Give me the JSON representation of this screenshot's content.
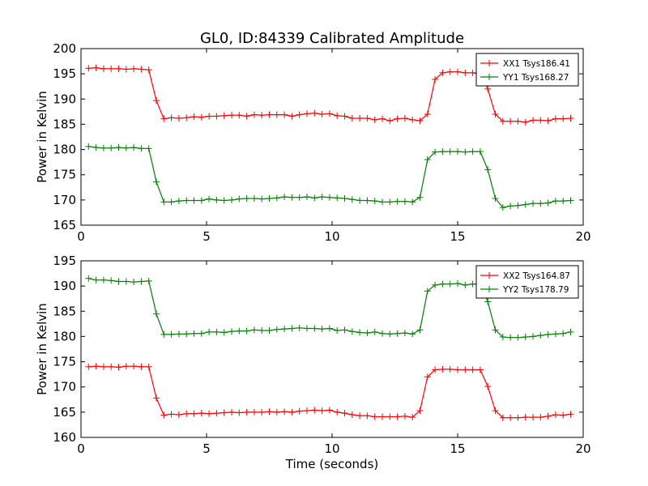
{
  "title": "GL0, ID:84339 Calibrated Amplitude",
  "chart_data": [
    {
      "type": "line",
      "xlabel": "",
      "ylabel": "Power in Kelvin",
      "xlim": [
        0,
        20
      ],
      "ylim": [
        165,
        200
      ],
      "x_ticks": [
        "0",
        "5",
        "10",
        "15",
        "20"
      ],
      "y_ticks": [
        "165",
        "170",
        "175",
        "180",
        "185",
        "190",
        "195",
        "200"
      ],
      "legend_position": "top-right",
      "series": [
        {
          "name": "XX1 Tsys186.41",
          "color": "#ff0000",
          "x": [
            0.3,
            0.6,
            0.9,
            1.2,
            1.5,
            1.8,
            2.1,
            2.4,
            2.7,
            3.0,
            3.3,
            3.6,
            3.9,
            4.2,
            4.5,
            4.8,
            5.1,
            5.4,
            5.7,
            6.0,
            6.3,
            6.6,
            6.9,
            7.2,
            7.5,
            7.8,
            8.1,
            8.4,
            8.7,
            9.0,
            9.3,
            9.6,
            9.9,
            10.2,
            10.5,
            10.8,
            11.1,
            11.4,
            11.7,
            12.0,
            12.3,
            12.6,
            12.9,
            13.2,
            13.5,
            13.8,
            14.1,
            14.4,
            14.7,
            15.0,
            15.3,
            15.6,
            15.9,
            16.2,
            16.5,
            16.8,
            17.1,
            17.4,
            17.7,
            18.0,
            18.3,
            18.6,
            18.9,
            19.2,
            19.5
          ],
          "y": [
            196.1,
            196.2,
            196.0,
            196.0,
            196.0,
            195.9,
            196.0,
            195.9,
            195.8,
            189.7,
            186.1,
            186.3,
            186.2,
            186.3,
            186.5,
            186.4,
            186.6,
            186.6,
            186.7,
            186.8,
            186.8,
            186.6,
            186.9,
            186.8,
            186.9,
            186.9,
            186.9,
            186.6,
            186.9,
            187.1,
            187.2,
            187.0,
            187.1,
            186.7,
            186.6,
            186.2,
            186.2,
            186.2,
            185.9,
            186.1,
            185.7,
            186.1,
            186.2,
            185.9,
            185.7,
            187.0,
            193.9,
            195.2,
            195.4,
            195.4,
            195.2,
            195.2,
            195.0,
            192.0,
            187.0,
            185.6,
            185.6,
            185.6,
            185.4,
            185.8,
            185.8,
            185.7,
            186.1,
            186.1,
            186.2
          ]
        },
        {
          "name": "YY1 Tsys168.27",
          "color": "#008000",
          "x": [
            0.3,
            0.6,
            0.9,
            1.2,
            1.5,
            1.8,
            2.1,
            2.4,
            2.7,
            3.0,
            3.3,
            3.6,
            3.9,
            4.2,
            4.5,
            4.8,
            5.1,
            5.4,
            5.7,
            6.0,
            6.3,
            6.6,
            6.9,
            7.2,
            7.5,
            7.8,
            8.1,
            8.4,
            8.7,
            9.0,
            9.3,
            9.6,
            9.9,
            10.2,
            10.5,
            10.8,
            11.1,
            11.4,
            11.7,
            12.0,
            12.3,
            12.6,
            12.9,
            13.2,
            13.5,
            13.8,
            14.1,
            14.4,
            14.7,
            15.0,
            15.3,
            15.6,
            15.9,
            16.2,
            16.5,
            16.8,
            17.1,
            17.4,
            17.7,
            18.0,
            18.3,
            18.6,
            18.9,
            19.2,
            19.5
          ],
          "y": [
            180.6,
            180.4,
            180.3,
            180.3,
            180.4,
            180.3,
            180.4,
            180.2,
            180.2,
            173.6,
            169.6,
            169.6,
            169.8,
            169.9,
            169.9,
            169.9,
            170.2,
            170.0,
            169.9,
            170.0,
            170.2,
            170.3,
            170.3,
            170.2,
            170.3,
            170.4,
            170.6,
            170.5,
            170.5,
            170.6,
            170.4,
            170.6,
            170.5,
            170.4,
            170.3,
            170.1,
            169.9,
            169.9,
            169.8,
            169.6,
            169.6,
            169.7,
            169.7,
            169.6,
            170.5,
            178.0,
            179.5,
            179.6,
            179.6,
            179.6,
            179.5,
            179.6,
            179.6,
            176.0,
            170.3,
            168.5,
            168.8,
            168.9,
            169.1,
            169.3,
            169.3,
            169.4,
            169.8,
            169.8,
            169.9
          ]
        }
      ]
    },
    {
      "type": "line",
      "xlabel": "Time (seconds)",
      "ylabel": "Power in Kelvin",
      "xlim": [
        0,
        20
      ],
      "ylim": [
        160,
        195
      ],
      "x_ticks": [
        "0",
        "5",
        "10",
        "15",
        "20"
      ],
      "y_ticks": [
        "160",
        "165",
        "170",
        "175",
        "180",
        "185",
        "190",
        "195"
      ],
      "legend_position": "top-right",
      "series": [
        {
          "name": "XX2 Tsys164.87",
          "color": "#ff0000",
          "x": [
            0.3,
            0.6,
            0.9,
            1.2,
            1.5,
            1.8,
            2.1,
            2.4,
            2.7,
            3.0,
            3.3,
            3.6,
            3.9,
            4.2,
            4.5,
            4.8,
            5.1,
            5.4,
            5.7,
            6.0,
            6.3,
            6.6,
            6.9,
            7.2,
            7.5,
            7.8,
            8.1,
            8.4,
            8.7,
            9.0,
            9.3,
            9.6,
            9.9,
            10.2,
            10.5,
            10.8,
            11.1,
            11.4,
            11.7,
            12.0,
            12.3,
            12.6,
            12.9,
            13.2,
            13.5,
            13.8,
            14.1,
            14.4,
            14.7,
            15.0,
            15.3,
            15.6,
            15.9,
            16.2,
            16.5,
            16.8,
            17.1,
            17.4,
            17.7,
            18.0,
            18.3,
            18.6,
            18.9,
            19.2,
            19.5
          ],
          "y": [
            174.0,
            174.1,
            174.0,
            174.0,
            173.9,
            174.1,
            174.1,
            174.0,
            174.0,
            167.8,
            164.4,
            164.6,
            164.5,
            164.7,
            164.7,
            164.8,
            164.7,
            164.8,
            164.9,
            165.0,
            164.9,
            165.0,
            165.0,
            165.0,
            165.1,
            165.0,
            165.1,
            165.0,
            165.2,
            165.3,
            165.4,
            165.3,
            165.4,
            165.0,
            164.8,
            164.5,
            164.3,
            164.3,
            164.1,
            164.1,
            164.1,
            164.1,
            164.2,
            164.0,
            165.3,
            172.0,
            173.4,
            173.5,
            173.5,
            173.4,
            173.4,
            173.4,
            173.4,
            170.1,
            165.3,
            163.9,
            163.9,
            163.9,
            164.0,
            164.0,
            164.0,
            164.2,
            164.5,
            164.4,
            164.6
          ]
        },
        {
          "name": "YY2 Tsys178.79",
          "color": "#008000",
          "x": [
            0.3,
            0.6,
            0.9,
            1.2,
            1.5,
            1.8,
            2.1,
            2.4,
            2.7,
            3.0,
            3.3,
            3.6,
            3.9,
            4.2,
            4.5,
            4.8,
            5.1,
            5.4,
            5.7,
            6.0,
            6.3,
            6.6,
            6.9,
            7.2,
            7.5,
            7.8,
            8.1,
            8.4,
            8.7,
            9.0,
            9.3,
            9.6,
            9.9,
            10.2,
            10.5,
            10.8,
            11.1,
            11.4,
            11.7,
            12.0,
            12.3,
            12.6,
            12.9,
            13.2,
            13.5,
            13.8,
            14.1,
            14.4,
            14.7,
            15.0,
            15.3,
            15.6,
            15.9,
            16.2,
            16.5,
            16.8,
            17.1,
            17.4,
            17.7,
            18.0,
            18.3,
            18.6,
            18.9,
            19.2,
            19.5
          ],
          "y": [
            191.5,
            191.2,
            191.2,
            191.1,
            190.9,
            190.9,
            190.8,
            190.9,
            191.0,
            184.5,
            180.4,
            180.4,
            180.5,
            180.5,
            180.6,
            180.6,
            180.9,
            180.9,
            180.8,
            181.0,
            181.1,
            181.1,
            181.3,
            181.2,
            181.2,
            181.4,
            181.5,
            181.6,
            181.7,
            181.6,
            181.6,
            181.5,
            181.6,
            181.2,
            181.3,
            181.0,
            180.8,
            180.7,
            180.9,
            180.6,
            180.5,
            180.6,
            180.7,
            180.5,
            181.3,
            189.0,
            190.2,
            190.4,
            190.4,
            190.5,
            190.2,
            190.4,
            190.3,
            186.9,
            181.3,
            179.9,
            179.8,
            179.8,
            179.9,
            180.0,
            180.2,
            180.4,
            180.5,
            180.6,
            180.9
          ]
        }
      ]
    }
  ]
}
